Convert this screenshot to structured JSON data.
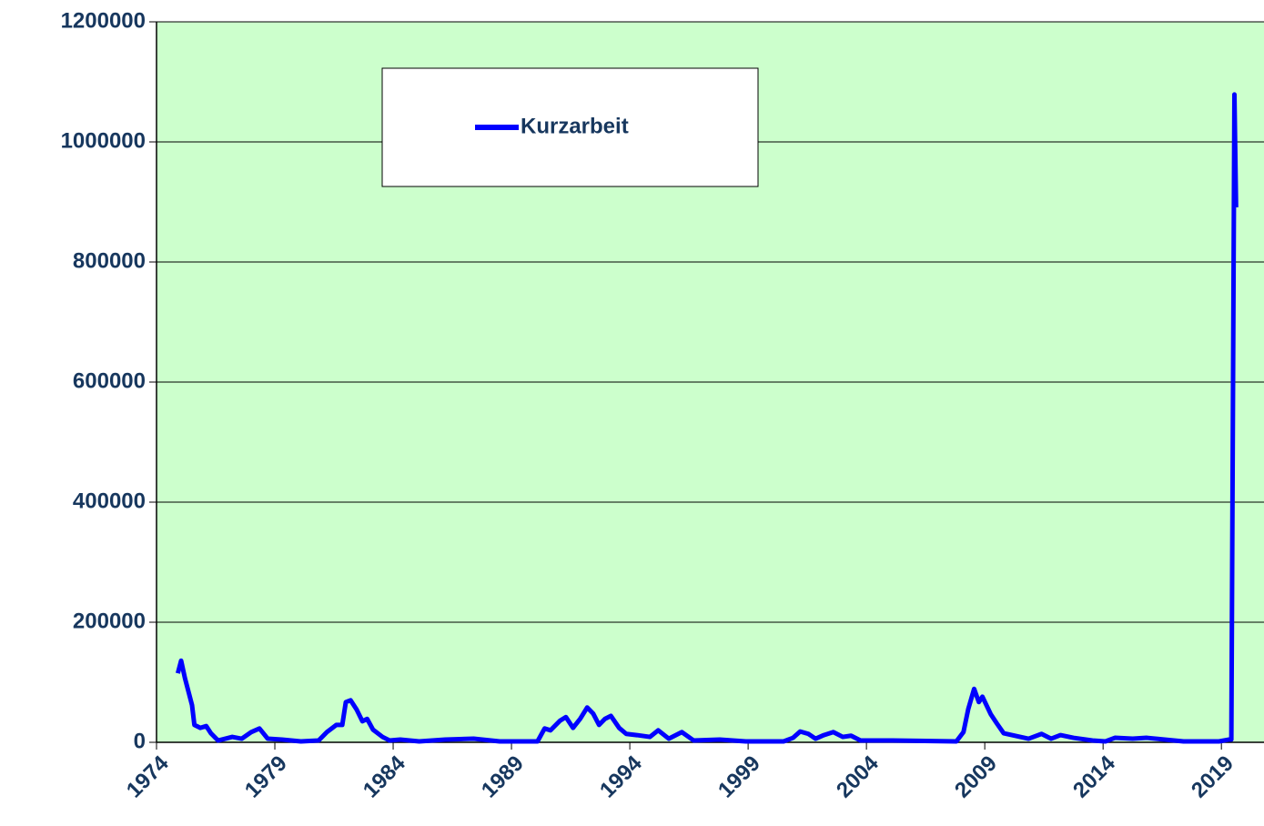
{
  "chart_data": {
    "type": "line",
    "x": [
      1974.9,
      1975.04,
      1975.2,
      1975.5,
      1975.6,
      1975.85,
      1976.1,
      1976.3,
      1976.6,
      1977.2,
      1977.6,
      1978.0,
      1978.35,
      1978.7,
      1979.3,
      1980.1,
      1980.85,
      1981.2,
      1981.6,
      1981.85,
      1982.0,
      1982.2,
      1982.45,
      1982.7,
      1982.9,
      1983.15,
      1983.55,
      1983.85,
      1984.3,
      1985.1,
      1986.2,
      1987.4,
      1988.5,
      1990.1,
      1990.4,
      1990.65,
      1991.05,
      1991.3,
      1991.6,
      1991.9,
      1992.2,
      1992.45,
      1992.7,
      1992.95,
      1993.2,
      1993.55,
      1993.85,
      1994.3,
      1994.85,
      1995.2,
      1995.65,
      1996.2,
      1996.7,
      1997.8,
      1998.9,
      2000.5,
      2000.9,
      2001.2,
      2001.55,
      2001.85,
      2002.2,
      2002.6,
      2003.0,
      2003.35,
      2003.75,
      2005.1,
      2007.8,
      2008.1,
      2008.3,
      2008.55,
      2008.75,
      2008.9,
      2009.25,
      2009.5,
      2009.8,
      2010.85,
      2011.4,
      2011.8,
      2012.2,
      2012.75,
      2013.55,
      2014.1,
      2014.5,
      2015.25,
      2015.85,
      2016.6,
      2017.4,
      2018.9,
      2019.3,
      2019.42,
      2019.55,
      2019.62
    ],
    "series": [
      {
        "name": "Kurzarbeit",
        "color": "#0000ff",
        "values": [
          115000,
          136000,
          107000,
          62000,
          29000,
          24000,
          27000,
          15000,
          3000,
          9000,
          6000,
          17000,
          23000,
          6000,
          4500,
          1500,
          3000,
          17000,
          29000,
          29000,
          67000,
          70000,
          55000,
          35000,
          39000,
          21000,
          9000,
          3000,
          4500,
          1500,
          4500,
          6000,
          1500,
          1500,
          23000,
          20000,
          36000,
          42000,
          24000,
          39000,
          58000,
          48000,
          29000,
          39000,
          44000,
          24000,
          14000,
          12000,
          9000,
          20000,
          6000,
          17000,
          3000,
          4500,
          1500,
          1500,
          7500,
          18000,
          14000,
          6000,
          12000,
          17000,
          9000,
          11000,
          3000,
          3000,
          1500,
          17000,
          55000,
          89000,
          67000,
          76000,
          47000,
          32000,
          15000,
          6000,
          14000,
          6000,
          12000,
          7500,
          3000,
          1500,
          7500,
          6000,
          7500,
          4500,
          1500,
          1500,
          4500,
          4500,
          1079000,
          891000
        ]
      }
    ],
    "xlim": [
      1974,
      2020.8
    ],
    "xticks": [
      1974,
      1979,
      1984,
      1989,
      1994,
      1999,
      2004,
      2009,
      2014,
      2019
    ],
    "ylim": [
      0,
      1200000
    ],
    "yticks": [
      0,
      200000,
      400000,
      600000,
      800000,
      1000000,
      1200000
    ],
    "grid": true,
    "legend": "top",
    "background": "#ccffcc"
  }
}
